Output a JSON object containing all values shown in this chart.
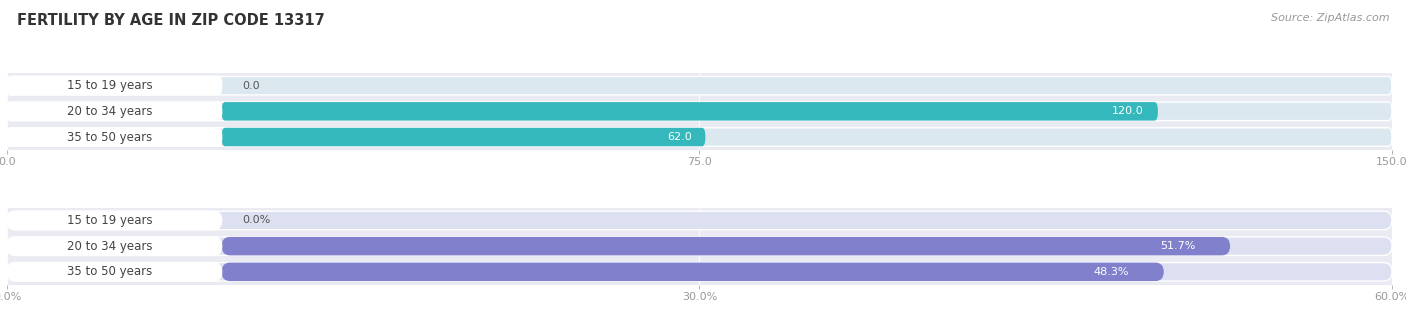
{
  "title": "FERTILITY BY AGE IN ZIP CODE 13317",
  "source": "Source: ZipAtlas.com",
  "top_chart": {
    "categories": [
      "15 to 19 years",
      "20 to 34 years",
      "35 to 50 years"
    ],
    "values": [
      0.0,
      120.0,
      62.0
    ],
    "xlim": [
      0,
      150.0
    ],
    "xticks": [
      0.0,
      75.0,
      150.0
    ],
    "bar_color": "#34b8bb",
    "track_color": "#dce8f0",
    "label_bg": "#ffffff"
  },
  "bottom_chart": {
    "categories": [
      "15 to 19 years",
      "20 to 34 years",
      "35 to 50 years"
    ],
    "values": [
      0.0,
      51.7,
      48.3
    ],
    "xlim": [
      0,
      60.0
    ],
    "xticks": [
      0.0,
      30.0,
      60.0
    ],
    "bar_color": "#8080cc",
    "track_color": "#dce0f0",
    "label_bg": "#ffffff"
  },
  "title_fontsize": 10.5,
  "source_fontsize": 8,
  "cat_fontsize": 8.5,
  "val_fontsize": 8,
  "tick_fontsize": 8,
  "bar_height": 0.72,
  "label_color": "#555555",
  "tick_color": "#999999",
  "fig_bg": "#ffffff",
  "chart_bg": "#eaebf2",
  "grid_color": "#ffffff",
  "title_color": "#333333",
  "source_color": "#999999"
}
